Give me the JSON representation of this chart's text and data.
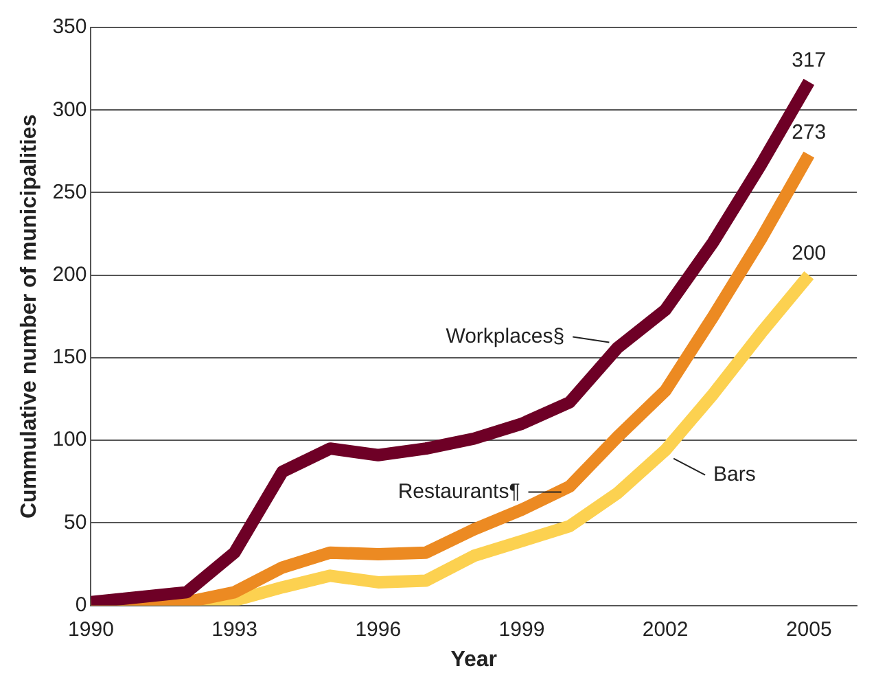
{
  "chart_data": {
    "type": "line",
    "xlabel": "Year",
    "ylabel": "Cummulative number of municipalities",
    "x": [
      1990,
      1992,
      1993,
      1994,
      1995,
      1996,
      1997,
      1998,
      1999,
      2000,
      2001,
      2002,
      2003,
      2004,
      2005
    ],
    "series": [
      {
        "name": "Workplaces§",
        "color": "#6e0026",
        "values": [
          2,
          8,
          32,
          81,
          95,
          91,
          95,
          101,
          110,
          123,
          156,
          179,
          220,
          267,
          317
        ],
        "value_labels": [
          null,
          null,
          null,
          null,
          null,
          null,
          null,
          null,
          null,
          null,
          null,
          null,
          null,
          null,
          "317"
        ]
      },
      {
        "name": "Restaurants¶",
        "color": "#ec8a22",
        "values": [
          0,
          2,
          8,
          23,
          32,
          31,
          32,
          46,
          58,
          72,
          102,
          130,
          175,
          222,
          273
        ],
        "value_labels": [
          null,
          null,
          null,
          null,
          null,
          null,
          null,
          null,
          null,
          null,
          null,
          null,
          null,
          null,
          "273"
        ]
      },
      {
        "name": "Bars",
        "color": "#fcd150",
        "values": [
          0,
          0,
          3,
          11,
          18,
          14,
          15,
          30,
          39,
          48,
          68,
          94,
          128,
          165,
          200
        ],
        "value_labels": [
          null,
          null,
          null,
          null,
          null,
          null,
          null,
          null,
          null,
          null,
          null,
          null,
          null,
          null,
          "200"
        ]
      }
    ],
    "xlim": [
      1990,
      2006
    ],
    "xticks": [
      1990,
      1993,
      1996,
      1999,
      2002,
      2005
    ],
    "ylim": [
      0,
      350
    ],
    "yticks": [
      0,
      50,
      100,
      150,
      200,
      250,
      300,
      350
    ],
    "grid": "y",
    "legend": false,
    "marker": "none",
    "line_style": "solid"
  }
}
